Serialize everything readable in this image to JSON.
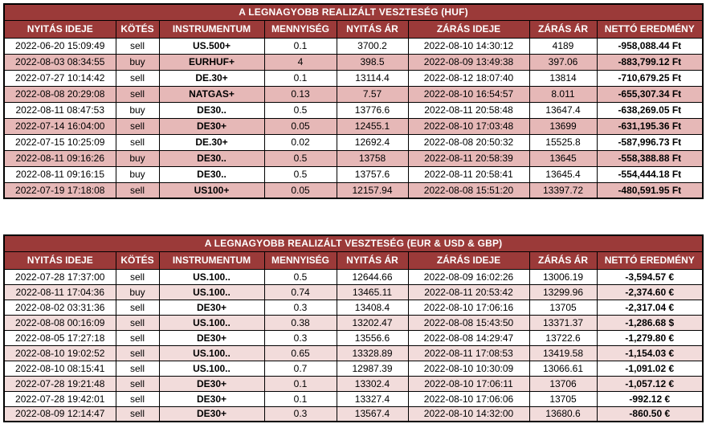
{
  "colors": {
    "header_bg": "#9B3A39",
    "header_text": "#FFFFFF",
    "zebra_huf": "#E6B8B7",
    "zebra_fx": "#F2DCDB",
    "border": "#000000",
    "row_bg": "#FFFFFF",
    "text": "#000000"
  },
  "tables": [
    {
      "id": "huf",
      "title": "A LEGNAGYOBB REALIZÁLT VESZTESÉG (HUF)",
      "columns": [
        "NYITÁS IDEJE",
        "KÖTÉS",
        "INSTRUMENTUM",
        "MENNYISÉG",
        "NYITÁS ÁR",
        "ZÁRÁS IDEJE",
        "ZÁRÁS ÁR",
        "NETTÓ EREDMÉNY"
      ],
      "rows": [
        [
          "2022-06-20 15:09:49",
          "sell",
          "US.500+",
          "0.1",
          "3700.2",
          "2022-08-10 14:30:12",
          "4189",
          "-958,088.44 Ft"
        ],
        [
          "2022-08-03 08:34:55",
          "buy",
          "EURHUF+",
          "4",
          "398.5",
          "2022-08-09 13:49:38",
          "397.06",
          "-883,799.12 Ft"
        ],
        [
          "2022-07-27 10:14:42",
          "sell",
          "DE.30+",
          "0.1",
          "13114.4",
          "2022-08-12 18:07:40",
          "13814",
          "-710,679.25 Ft"
        ],
        [
          "2022-08-08 20:29:08",
          "sell",
          "NATGAS+",
          "0.13",
          "7.57",
          "2022-08-10 16:54:57",
          "8.011",
          "-655,307.34 Ft"
        ],
        [
          "2022-08-11 08:47:53",
          "buy",
          "DE30..",
          "0.5",
          "13776.6",
          "2022-08-11 20:58:48",
          "13647.4",
          "-638,269.05 Ft"
        ],
        [
          "2022-07-14 16:04:00",
          "sell",
          "DE30+",
          "0.05",
          "12455.1",
          "2022-08-10 17:03:48",
          "13699",
          "-631,195.36 Ft"
        ],
        [
          "2022-07-15 10:25:09",
          "sell",
          "DE.30+",
          "0.02",
          "12692.4",
          "2022-08-08 20:50:32",
          "15525.8",
          "-587,996.73 Ft"
        ],
        [
          "2022-08-11 09:16:26",
          "buy",
          "DE30..",
          "0.5",
          "13758",
          "2022-08-11 20:58:39",
          "13645",
          "-558,388.88 Ft"
        ],
        [
          "2022-08-11 09:16:15",
          "buy",
          "DE30..",
          "0.5",
          "13757.6",
          "2022-08-11 20:58:41",
          "13645.4",
          "-554,444.18 Ft"
        ],
        [
          "2022-07-19 17:18:08",
          "sell",
          "US100+",
          "0.05",
          "12157.94",
          "2022-08-08 15:51:20",
          "13397.72",
          "-480,591.95 Ft"
        ]
      ]
    },
    {
      "id": "fx",
      "title": "A LEGNAGYOBB REALIZÁLT VESZTESÉG (EUR & USD & GBP)",
      "columns": [
        "NYITÁS IDEJE",
        "KÖTÉS",
        "INSTRUMENTUM",
        "MENNYISÉG",
        "NYITÁS ÁR",
        "ZÁRÁS IDEJE",
        "ZÁRÁS ÁR",
        "NETTÓ EREDMÉNY"
      ],
      "rows": [
        [
          "2022-07-28 17:37:00",
          "sell",
          "US.100..",
          "0.5",
          "12644.66",
          "2022-08-09 16:02:26",
          "13006.19",
          "-3,594.57 €"
        ],
        [
          "2022-08-11 17:04:36",
          "buy",
          "US.100..",
          "0.74",
          "13465.11",
          "2022-08-11 20:53:42",
          "13299.96",
          "-2,374.60 €"
        ],
        [
          "2022-08-02 03:31:36",
          "sell",
          "DE30+",
          "0.3",
          "13408.4",
          "2022-08-10 17:06:16",
          "13705",
          "-2,317.04 €"
        ],
        [
          "2022-08-08 00:16:09",
          "sell",
          "US.100..",
          "0.38",
          "13202.47",
          "2022-08-08 15:43:50",
          "13371.37",
          "-1,286.68 $"
        ],
        [
          "2022-08-05 17:27:18",
          "sell",
          "DE30+",
          "0.3",
          "13556.6",
          "2022-08-08 14:29:47",
          "13722.6",
          "-1,279.80 €"
        ],
        [
          "2022-08-10 19:02:52",
          "sell",
          "US.100..",
          "0.65",
          "13328.89",
          "2022-08-11 17:08:53",
          "13419.58",
          "-1,154.03 €"
        ],
        [
          "2022-08-10 08:15:41",
          "sell",
          "US.100..",
          "0.7",
          "12987.39",
          "2022-08-10 10:30:09",
          "13066.61",
          "-1,091.02 €"
        ],
        [
          "2022-07-28 19:21:48",
          "sell",
          "DE30+",
          "0.1",
          "13302.4",
          "2022-08-10 17:06:11",
          "13706",
          "-1,057.12 €"
        ],
        [
          "2022-07-28 19:42:01",
          "sell",
          "DE30+",
          "0.1",
          "13327.4",
          "2022-08-10 17:06:06",
          "13705",
          "-992.12 €"
        ],
        [
          "2022-08-09 12:14:47",
          "sell",
          "DE30+",
          "0.3",
          "13567.4",
          "2022-08-10 14:32:00",
          "13680.6",
          "-860.50 €"
        ]
      ]
    }
  ]
}
